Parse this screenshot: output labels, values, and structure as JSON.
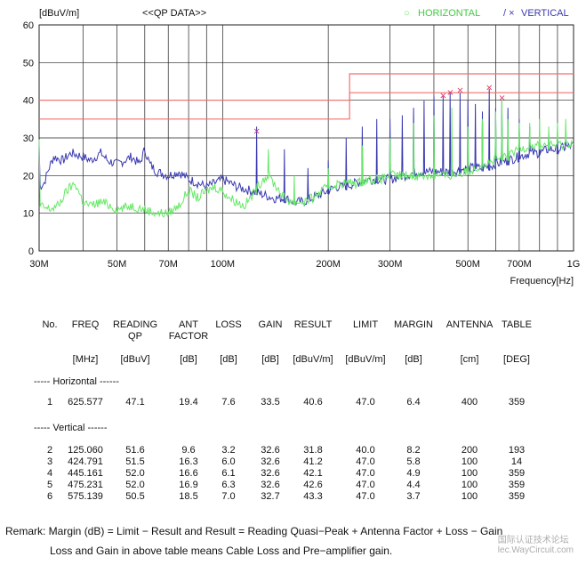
{
  "chart_data": {
    "type": "line",
    "header_units": "[dBuV/m]",
    "header_title": "<<QP DATA>>",
    "legend": [
      {
        "marker": "○",
        "name": "HORIZONTAL",
        "color": "#66e866"
      },
      {
        "marker": "/ ×",
        "name": "VERTICAL",
        "color": "#3a3ab0"
      }
    ],
    "xlabel": "Frequency[Hz]",
    "x_scale": "log",
    "xlim": [
      30,
      1000
    ],
    "ylim": [
      0,
      60
    ],
    "y_ticks": [
      0,
      10,
      20,
      30,
      40,
      50,
      60
    ],
    "x_ticks": [
      {
        "f": 30,
        "label": "30M"
      },
      {
        "f": 50,
        "label": "50M"
      },
      {
        "f": 70,
        "label": "70M"
      },
      {
        "f": 100,
        "label": "100M"
      },
      {
        "f": 200,
        "label": "200M"
      },
      {
        "f": 300,
        "label": "300M"
      },
      {
        "f": 500,
        "label": "500M"
      },
      {
        "f": 700,
        "label": "700M"
      },
      {
        "f": 1000,
        "label": "1G"
      }
    ],
    "grid": true,
    "limit_color": "#f07070",
    "limits": [
      {
        "name": "QP limit",
        "points": [
          [
            30,
            40
          ],
          [
            230,
            40
          ],
          [
            230,
            47
          ],
          [
            1000,
            47
          ]
        ]
      },
      {
        "name": "margin line",
        "points": [
          [
            30,
            35
          ],
          [
            230,
            35
          ],
          [
            230,
            42
          ],
          [
            1000,
            42
          ]
        ]
      }
    ],
    "series": [
      {
        "color": "#3a3ab0",
        "base": [
          [
            30,
            17
          ],
          [
            31,
            18
          ],
          [
            32,
            22
          ],
          [
            33,
            25
          ],
          [
            35,
            24
          ],
          [
            37,
            26
          ],
          [
            40,
            25
          ],
          [
            42,
            24
          ],
          [
            45,
            26
          ],
          [
            47,
            24
          ],
          [
            50,
            23
          ],
          [
            55,
            25
          ],
          [
            58,
            23
          ],
          [
            60,
            27
          ],
          [
            62,
            23
          ],
          [
            65,
            21
          ],
          [
            70,
            20
          ],
          [
            75,
            21
          ],
          [
            80,
            19
          ],
          [
            85,
            18
          ],
          [
            90,
            17
          ],
          [
            95,
            18
          ],
          [
            100,
            19
          ],
          [
            105,
            18
          ],
          [
            110,
            17
          ],
          [
            120,
            16
          ],
          [
            130,
            15
          ],
          [
            140,
            14
          ],
          [
            150,
            14
          ],
          [
            160,
            13
          ],
          [
            170,
            13
          ],
          [
            180,
            14
          ],
          [
            190,
            15
          ],
          [
            200,
            16
          ],
          [
            210,
            17
          ],
          [
            220,
            17
          ],
          [
            240,
            18
          ],
          [
            260,
            19
          ],
          [
            280,
            19
          ],
          [
            300,
            19
          ],
          [
            330,
            20
          ],
          [
            360,
            21
          ],
          [
            400,
            21
          ],
          [
            450,
            21
          ],
          [
            500,
            22
          ],
          [
            550,
            22
          ],
          [
            600,
            23
          ],
          [
            650,
            24
          ],
          [
            700,
            25
          ],
          [
            750,
            26
          ],
          [
            800,
            26
          ],
          [
            850,
            27
          ],
          [
            900,
            27
          ],
          [
            1000,
            28
          ]
        ],
        "spikes": [
          [
            125,
            33
          ],
          [
            150,
            27
          ],
          [
            175,
            22
          ],
          [
            200,
            24
          ],
          [
            225,
            30
          ],
          [
            250,
            33
          ],
          [
            275,
            35
          ],
          [
            300,
            35
          ],
          [
            325,
            36
          ],
          [
            350,
            38
          ],
          [
            375,
            40
          ],
          [
            400,
            41
          ],
          [
            425,
            41
          ],
          [
            445,
            42
          ],
          [
            475,
            42
          ],
          [
            500,
            40
          ],
          [
            525,
            39
          ],
          [
            550,
            37
          ],
          [
            575,
            43
          ],
          [
            600,
            38
          ],
          [
            625,
            40
          ],
          [
            650,
            38
          ],
          [
            700,
            35
          ],
          [
            750,
            33
          ],
          [
            800,
            32
          ],
          [
            850,
            31
          ],
          [
            900,
            30
          ],
          [
            950,
            29
          ]
        ]
      },
      {
        "color": "#66e866",
        "base": [
          [
            30,
            12
          ],
          [
            32,
            11
          ],
          [
            34,
            12
          ],
          [
            36,
            16
          ],
          [
            38,
            18
          ],
          [
            40,
            13
          ],
          [
            42,
            12
          ],
          [
            45,
            13
          ],
          [
            48,
            12
          ],
          [
            50,
            11
          ],
          [
            55,
            12
          ],
          [
            60,
            11
          ],
          [
            65,
            10
          ],
          [
            70,
            10
          ],
          [
            75,
            12
          ],
          [
            80,
            16
          ],
          [
            85,
            14
          ],
          [
            90,
            16
          ],
          [
            95,
            17
          ],
          [
            100,
            16
          ],
          [
            105,
            14
          ],
          [
            110,
            13
          ],
          [
            115,
            12
          ],
          [
            120,
            14
          ],
          [
            130,
            19
          ],
          [
            135,
            20
          ],
          [
            140,
            18
          ],
          [
            150,
            14
          ],
          [
            160,
            13
          ],
          [
            170,
            13
          ],
          [
            180,
            14
          ],
          [
            200,
            17
          ],
          [
            220,
            18
          ],
          [
            240,
            18
          ],
          [
            260,
            19
          ],
          [
            280,
            19
          ],
          [
            300,
            20
          ],
          [
            330,
            20
          ],
          [
            360,
            20
          ],
          [
            400,
            20
          ],
          [
            450,
            20
          ],
          [
            500,
            21
          ],
          [
            550,
            23
          ],
          [
            600,
            24
          ],
          [
            650,
            25
          ],
          [
            700,
            27
          ],
          [
            750,
            28
          ],
          [
            800,
            28
          ],
          [
            850,
            28
          ],
          [
            900,
            28
          ],
          [
            1000,
            29
          ]
        ],
        "spikes": [
          [
            135,
            27
          ],
          [
            160,
            20
          ],
          [
            200,
            22
          ],
          [
            250,
            28
          ],
          [
            300,
            30
          ],
          [
            350,
            34
          ],
          [
            400,
            36
          ],
          [
            450,
            38
          ],
          [
            500,
            33
          ],
          [
            550,
            35
          ],
          [
            600,
            37
          ],
          [
            625,
            40
          ],
          [
            650,
            35
          ],
          [
            700,
            34
          ],
          [
            750,
            34
          ],
          [
            800,
            35
          ],
          [
            850,
            33
          ],
          [
            900,
            34
          ],
          [
            950,
            35
          ]
        ]
      }
    ],
    "markers": [
      {
        "f": 125.06,
        "level": 31.8
      },
      {
        "f": 424.791,
        "level": 41.2
      },
      {
        "f": 445.161,
        "level": 42.1
      },
      {
        "f": 475.231,
        "level": 42.6
      },
      {
        "f": 575.139,
        "level": 43.3
      },
      {
        "f": 625.577,
        "level": 40.6
      }
    ],
    "marker_glyph": "×",
    "marker_color": "#e03060"
  },
  "table": {
    "headers": [
      "No.",
      "FREQ",
      "READING",
      "QP",
      "ANT",
      "FACTOR",
      "LOSS",
      "GAIN",
      "RESULT",
      "LIMIT",
      "MARGIN",
      "ANTENNA",
      "TABLE"
    ],
    "units": [
      "[MHz]",
      "[dBuV]",
      "[dB]",
      "[dB]",
      "[dB]",
      "[dBuV/m]",
      "[dBuV/m]",
      "[dB]",
      "[cm]",
      "[DEG]"
    ],
    "section_horizontal": "----- Horizontal ------",
    "section_vertical": "----- Vertical ------",
    "horizontal_rows": [
      [
        "1",
        "625.577",
        "47.1",
        "19.4",
        "7.6",
        "33.5",
        "40.6",
        "47.0",
        "6.4",
        "400",
        "359"
      ]
    ],
    "vertical_rows": [
      [
        "2",
        "125.060",
        "51.6",
        "9.6",
        "3.2",
        "32.6",
        "31.8",
        "40.0",
        "8.2",
        "200",
        "193"
      ],
      [
        "3",
        "424.791",
        "51.5",
        "16.3",
        "6.0",
        "32.6",
        "41.2",
        "47.0",
        "5.8",
        "100",
        "14"
      ],
      [
        "4",
        "445.161",
        "52.0",
        "16.6",
        "6.1",
        "32.6",
        "42.1",
        "47.0",
        "4.9",
        "100",
        "359"
      ],
      [
        "5",
        "475.231",
        "52.0",
        "16.9",
        "6.3",
        "32.6",
        "42.6",
        "47.0",
        "4.4",
        "100",
        "359"
      ],
      [
        "6",
        "575.139",
        "50.5",
        "18.5",
        "7.0",
        "32.7",
        "43.3",
        "47.0",
        "3.7",
        "100",
        "359"
      ]
    ]
  },
  "remark": {
    "line1": "Remark: Margin (dB) = Limit −  Result and Result = Reading Quasi−Peak + Antenna Factor + Loss −  Gain",
    "line2": "Loss and Gain in above table means Cable Loss and Pre−amplifier gain."
  },
  "watermark": {
    "line1": "国际认证技术论坛",
    "line2": "lec.WayCircuit.com"
  }
}
